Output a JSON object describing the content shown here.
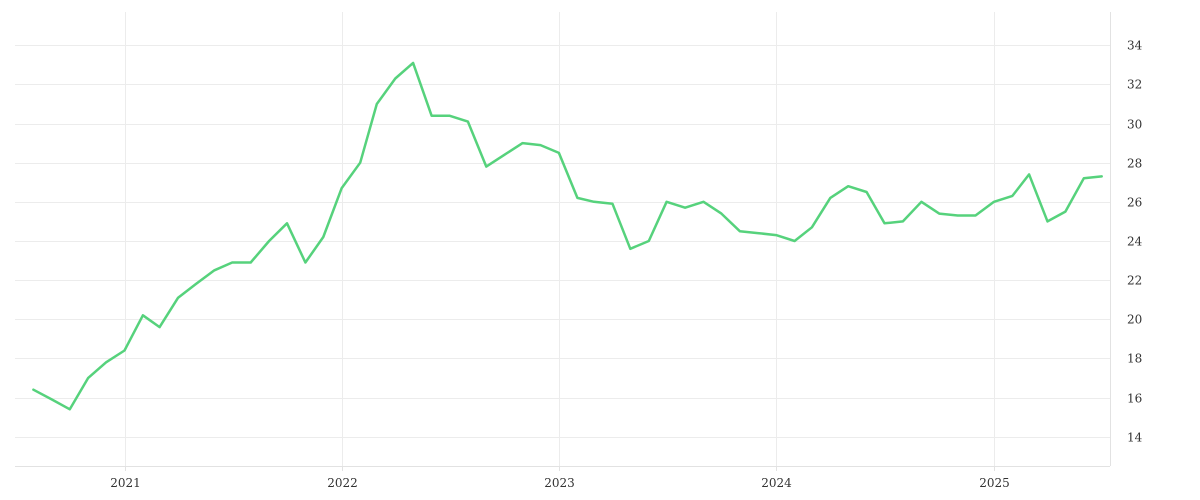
{
  "chart_data": {
    "type": "line",
    "title": "",
    "xlabel": "",
    "ylabel": "",
    "x_ticks": [
      "2021",
      "2022",
      "2023",
      "2024",
      "2025"
    ],
    "y_ticks": [
      14,
      16,
      18,
      20,
      22,
      24,
      26,
      28,
      30,
      32,
      34
    ],
    "xlim": [
      "2020-07-01",
      "2025-07-15"
    ],
    "ylim": [
      12.5,
      35.7
    ],
    "grid": true,
    "y_axis_position": "right",
    "legend": "none",
    "series": [
      {
        "color": "#56d27c",
        "x": [
          "2020-08-01",
          "2020-09-01",
          "2020-10-01",
          "2020-11-01",
          "2020-12-01",
          "2021-01-01",
          "2021-02-01",
          "2021-03-01",
          "2021-04-01",
          "2021-05-01",
          "2021-06-01",
          "2021-07-01",
          "2021-08-01",
          "2021-09-01",
          "2021-10-01",
          "2021-11-01",
          "2021-12-01",
          "2022-01-01",
          "2022-02-01",
          "2022-03-01",
          "2022-04-01",
          "2022-05-01",
          "2022-06-01",
          "2022-07-01",
          "2022-08-01",
          "2022-09-01",
          "2022-10-01",
          "2022-11-01",
          "2022-12-01",
          "2023-01-01",
          "2023-02-01",
          "2023-03-01",
          "2023-04-01",
          "2023-05-01",
          "2023-06-01",
          "2023-07-01",
          "2023-08-01",
          "2023-09-01",
          "2023-10-01",
          "2023-11-01",
          "2023-12-01",
          "2024-01-01",
          "2024-02-01",
          "2024-03-01",
          "2024-04-01",
          "2024-05-01",
          "2024-06-01",
          "2024-07-01",
          "2024-08-01",
          "2024-09-01",
          "2024-10-01",
          "2024-11-01",
          "2024-12-01",
          "2025-01-01",
          "2025-02-01",
          "2025-03-01",
          "2025-04-01",
          "2025-05-01",
          "2025-06-01",
          "2025-07-01"
        ],
        "values": [
          16.4,
          15.9,
          15.4,
          17.0,
          17.8,
          18.4,
          20.2,
          19.6,
          21.1,
          21.8,
          22.5,
          22.9,
          22.9,
          24.0,
          24.9,
          22.9,
          24.2,
          26.7,
          28.0,
          31.0,
          32.3,
          33.1,
          30.4,
          30.4,
          30.1,
          27.8,
          28.4,
          29.0,
          28.9,
          28.5,
          26.2,
          26.0,
          25.9,
          23.6,
          24.0,
          26.0,
          25.7,
          26.0,
          25.4,
          24.5,
          24.4,
          24.3,
          24.0,
          24.7,
          26.2,
          26.8,
          26.5,
          24.9,
          25.0,
          26.0,
          25.4,
          25.3,
          25.3,
          26.0,
          26.3,
          27.4,
          25.0,
          25.5,
          27.2,
          27.3
        ]
      }
    ]
  }
}
